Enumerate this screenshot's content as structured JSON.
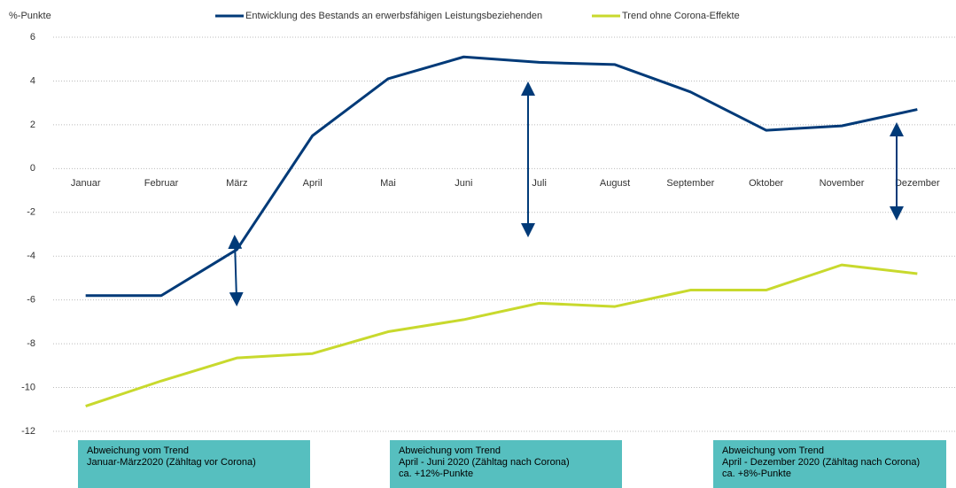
{
  "chart_data": {
    "type": "line",
    "y_label": "%-Punkte",
    "categories": [
      "Januar",
      "Februar",
      "März",
      "April",
      "Mai",
      "Juni",
      "Juli",
      "August",
      "September",
      "Oktober",
      "November",
      "Dezember"
    ],
    "series": [
      {
        "name": "Entwicklung des Bestands an erwerbsfähigen Leistungsbeziehenden",
        "color": "#003a78",
        "values": [
          -5.8,
          -5.8,
          -3.7,
          1.5,
          4.1,
          5.1,
          4.85,
          4.75,
          3.5,
          1.75,
          1.95,
          2.7
        ]
      },
      {
        "name": "Trend ohne Corona-Effekte",
        "color": "#c8d92d",
        "values": [
          -10.85,
          -9.7,
          -8.65,
          -8.45,
          -7.45,
          -6.9,
          -6.15,
          -6.3,
          -5.55,
          -5.55,
          -4.4,
          -4.8
        ]
      }
    ],
    "ylim": [
      -12,
      6
    ],
    "yticks": [
      -12,
      -10,
      -8,
      -6,
      -4,
      -2,
      0,
      2,
      4,
      6
    ],
    "grid": true,
    "annotations": [
      {
        "lines": [
          "Abweichung vom Trend",
          "Januar-März2020 (Zähltag vor Corona)"
        ]
      },
      {
        "lines": [
          "Abweichung vom Trend",
          "April - Juni 2020 (Zähltag nach Corona)",
          "ca. +12%-Punkte"
        ]
      },
      {
        "lines": [
          "Abweichung vom Trend",
          "April - Dezember 2020 (Zähltag nach Corona)",
          "ca. +8%-Punkte"
        ]
      }
    ]
  }
}
